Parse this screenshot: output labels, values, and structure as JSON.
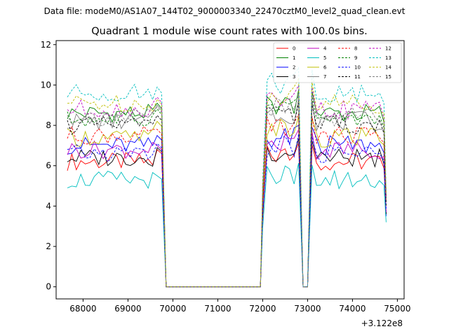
{
  "header": {
    "data_file": "Data file: modeM0/AS1A07_144T02_9000003340_22470cztM0_level2_quad_clean.evt"
  },
  "chart_data": {
    "type": "line",
    "title": "Quadrant 1 module wise count rates with 100.0s bins.",
    "xlabel": "",
    "ylabel": "",
    "x_offset_label": "+3.122e8",
    "xlim": [
      67400,
      75150
    ],
    "ylim": [
      -0.6,
      12.2
    ],
    "x_ticks": [
      68000,
      69000,
      70000,
      71000,
      72000,
      73000,
      74000,
      75000
    ],
    "x_tick_labels": [
      "68000",
      "69000",
      "70000",
      "71000",
      "72000",
      "73000",
      "74000",
      "75000"
    ],
    "y_ticks": [
      0,
      2,
      4,
      6,
      8,
      10,
      12
    ],
    "y_tick_labels": [
      "0",
      "2",
      "4",
      "6",
      "8",
      "10",
      "12"
    ],
    "legend_position": "top-right",
    "bins": {
      "segment1_x": [
        67650,
        67750,
        67850,
        67950,
        68050,
        68150,
        68250,
        68350,
        68450,
        68550,
        68650,
        68750,
        68850,
        68950,
        69050,
        69150,
        69250,
        69350,
        69450,
        69550,
        69650,
        69750
      ],
      "zero_x": [
        69850,
        69950,
        70050,
        70150,
        70250,
        70350,
        70450,
        70550,
        70650,
        70750,
        70850,
        70950,
        71050,
        71150,
        71250,
        71350,
        71450,
        71550,
        71650,
        71750,
        71850,
        71950
      ],
      "segment2_x": [
        72000,
        72100,
        72200,
        72300,
        72400,
        72500,
        72600,
        72700,
        72800
      ],
      "gap_x": [
        72900,
        73000
      ],
      "segment3_x": [
        73100,
        73200,
        73300,
        73400,
        73500,
        73600,
        73700,
        73800,
        73900,
        74000,
        74100,
        74200,
        74300,
        74400,
        74500,
        74600,
        74700,
        74750
      ]
    },
    "series": [
      {
        "name": "0",
        "color": "#ff0000",
        "dash": "solid",
        "level": 6.2,
        "pre_end": 6.8,
        "end": 4.5
      },
      {
        "name": "1",
        "color": "#008000",
        "dash": "solid",
        "level": 8.6,
        "pre_end": 9.1,
        "end": 4.4
      },
      {
        "name": "2",
        "color": "#0000ff",
        "dash": "solid",
        "level": 7.0,
        "pre_end": 7.5,
        "end": 3.5
      },
      {
        "name": "3",
        "color": "#000000",
        "dash": "solid",
        "level": 6.4,
        "pre_end": 6.9,
        "end": 3.6
      },
      {
        "name": "4",
        "color": "#bf00bf",
        "dash": "solid",
        "level": 6.8,
        "pre_end": 7.0,
        "end": 3.7
      },
      {
        "name": "5",
        "color": "#00bfbf",
        "dash": "solid",
        "level": 5.3,
        "pre_end": 5.5,
        "end": 3.2
      },
      {
        "name": "6",
        "color": "#bfbf00",
        "dash": "solid",
        "level": 7.4,
        "pre_end": 8.2,
        "end": 4.6
      },
      {
        "name": "7",
        "color": "#808080",
        "dash": "solid",
        "level": 8.2,
        "pre_end": 9.0,
        "end": 4.7
      },
      {
        "name": "8",
        "color": "#ff0000",
        "dash": "dashed",
        "level": 7.5,
        "pre_end": 7.8,
        "end": 4.3
      },
      {
        "name": "9",
        "color": "#008000",
        "dash": "dashed",
        "level": 8.3,
        "pre_end": 8.8,
        "end": 4.2
      },
      {
        "name": "10",
        "color": "#0000ff",
        "dash": "dashed",
        "level": 6.6,
        "pre_end": 7.1,
        "end": 3.8
      },
      {
        "name": "11",
        "color": "#000000",
        "dash": "dashed",
        "level": 8.0,
        "pre_end": 8.5,
        "end": 4.0
      },
      {
        "name": "12",
        "color": "#bf00bf",
        "dash": "dashed",
        "level": 8.8,
        "pre_end": 9.4,
        "end": 4.5
      },
      {
        "name": "13",
        "color": "#00bfbf",
        "dash": "dashed",
        "level": 9.6,
        "pre_end": 9.9,
        "end": 4.8
      },
      {
        "name": "14",
        "color": "#bfbf00",
        "dash": "dashed",
        "level": 9.1,
        "pre_end": 9.3,
        "end": 4.6
      },
      {
        "name": "15",
        "color": "#808080",
        "dash": "dashed",
        "level": 8.4,
        "pre_end": 8.9,
        "end": 4.3
      }
    ]
  }
}
